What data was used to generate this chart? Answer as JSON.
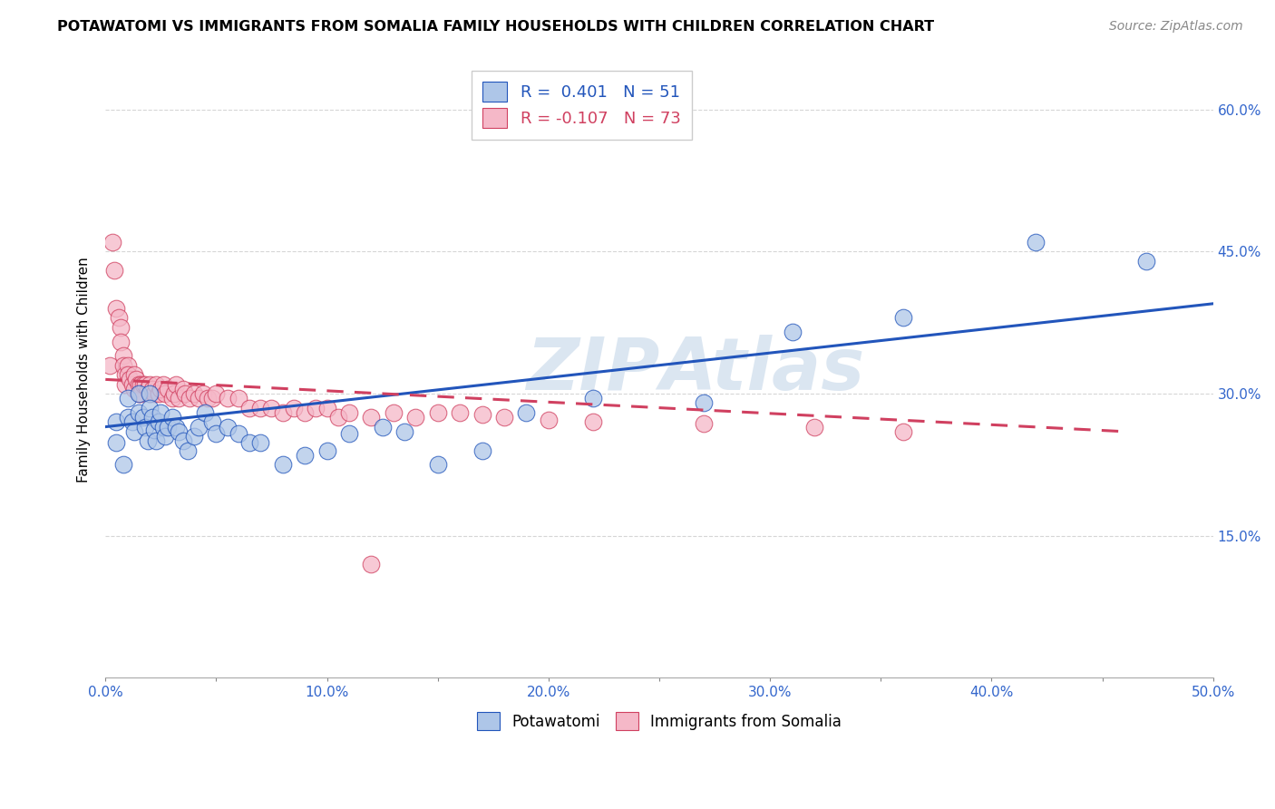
{
  "title": "POTAWATOMI VS IMMIGRANTS FROM SOMALIA FAMILY HOUSEHOLDS WITH CHILDREN CORRELATION CHART",
  "source": "Source: ZipAtlas.com",
  "ylabel": "Family Households with Children",
  "xlabel": "",
  "watermark": "ZIPAtlas",
  "series1_label": "Potawatomi",
  "series2_label": "Immigrants from Somalia",
  "series1_R": "0.401",
  "series1_N": "51",
  "series2_R": "-0.107",
  "series2_N": "73",
  "series1_color": "#aec6e8",
  "series2_color": "#f5b8c8",
  "line1_color": "#2255bb",
  "line2_color": "#d04060",
  "xlim": [
    0.0,
    0.5
  ],
  "ylim": [
    0.0,
    0.65
  ],
  "xticks": [
    0.0,
    0.05,
    0.1,
    0.15,
    0.2,
    0.25,
    0.3,
    0.35,
    0.4,
    0.45,
    0.5
  ],
  "xticklabels_major": [
    0.0,
    0.1,
    0.2,
    0.3,
    0.4,
    0.5
  ],
  "yticks": [
    0.15,
    0.3,
    0.45,
    0.6
  ],
  "xticklabels": [
    "0.0%",
    "",
    "10.0%",
    "",
    "20.0%",
    "",
    "30.0%",
    "",
    "40.0%",
    "",
    "50.0%"
  ],
  "yticklabels_right": [
    "15.0%",
    "30.0%",
    "45.0%",
    "60.0%"
  ],
  "background_color": "#ffffff",
  "grid_color": "#cccccc",
  "series1_x": [
    0.005,
    0.005,
    0.008,
    0.01,
    0.01,
    0.012,
    0.013,
    0.015,
    0.015,
    0.017,
    0.018,
    0.019,
    0.02,
    0.02,
    0.021,
    0.022,
    0.023,
    0.024,
    0.025,
    0.026,
    0.027,
    0.028,
    0.03,
    0.032,
    0.033,
    0.035,
    0.037,
    0.04,
    0.042,
    0.045,
    0.048,
    0.05,
    0.055,
    0.06,
    0.065,
    0.07,
    0.08,
    0.09,
    0.1,
    0.11,
    0.125,
    0.135,
    0.15,
    0.17,
    0.19,
    0.22,
    0.27,
    0.31,
    0.36,
    0.42,
    0.47
  ],
  "series1_y": [
    0.27,
    0.248,
    0.225,
    0.295,
    0.275,
    0.27,
    0.26,
    0.3,
    0.28,
    0.275,
    0.265,
    0.25,
    0.3,
    0.285,
    0.275,
    0.262,
    0.25,
    0.27,
    0.28,
    0.265,
    0.255,
    0.265,
    0.275,
    0.265,
    0.26,
    0.25,
    0.24,
    0.255,
    0.265,
    0.28,
    0.27,
    0.258,
    0.265,
    0.258,
    0.248,
    0.248,
    0.225,
    0.235,
    0.24,
    0.258,
    0.265,
    0.26,
    0.225,
    0.24,
    0.28,
    0.295,
    0.29,
    0.365,
    0.38,
    0.46,
    0.44
  ],
  "series2_x": [
    0.002,
    0.003,
    0.004,
    0.005,
    0.006,
    0.007,
    0.007,
    0.008,
    0.008,
    0.009,
    0.009,
    0.01,
    0.01,
    0.011,
    0.012,
    0.013,
    0.013,
    0.014,
    0.015,
    0.015,
    0.016,
    0.016,
    0.017,
    0.018,
    0.019,
    0.02,
    0.02,
    0.021,
    0.022,
    0.023,
    0.024,
    0.025,
    0.026,
    0.027,
    0.028,
    0.03,
    0.031,
    0.032,
    0.033,
    0.035,
    0.036,
    0.038,
    0.04,
    0.042,
    0.044,
    0.046,
    0.048,
    0.05,
    0.055,
    0.06,
    0.065,
    0.07,
    0.075,
    0.08,
    0.085,
    0.09,
    0.095,
    0.1,
    0.105,
    0.11,
    0.12,
    0.13,
    0.14,
    0.15,
    0.16,
    0.17,
    0.18,
    0.2,
    0.22,
    0.27,
    0.32,
    0.36,
    0.12
  ],
  "series2_y": [
    0.33,
    0.46,
    0.43,
    0.39,
    0.38,
    0.37,
    0.355,
    0.34,
    0.33,
    0.32,
    0.31,
    0.33,
    0.32,
    0.315,
    0.31,
    0.32,
    0.305,
    0.315,
    0.31,
    0.3,
    0.31,
    0.3,
    0.31,
    0.31,
    0.305,
    0.3,
    0.31,
    0.305,
    0.3,
    0.31,
    0.3,
    0.305,
    0.31,
    0.3,
    0.305,
    0.295,
    0.3,
    0.31,
    0.295,
    0.305,
    0.3,
    0.295,
    0.3,
    0.295,
    0.3,
    0.295,
    0.295,
    0.3,
    0.295,
    0.295,
    0.285,
    0.285,
    0.285,
    0.28,
    0.285,
    0.28,
    0.285,
    0.285,
    0.275,
    0.28,
    0.275,
    0.28,
    0.275,
    0.28,
    0.28,
    0.278,
    0.275,
    0.272,
    0.27,
    0.268,
    0.265,
    0.26,
    0.12
  ]
}
